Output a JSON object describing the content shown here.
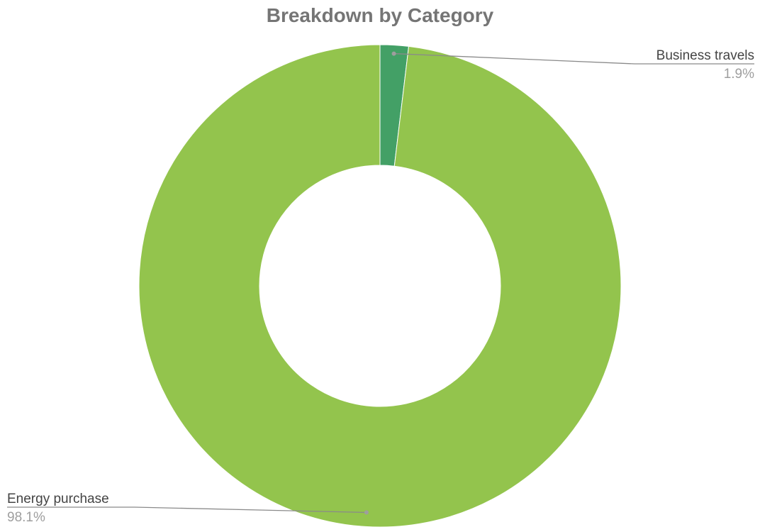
{
  "chart_data": {
    "type": "pie",
    "style": "donut",
    "title": "Breakdown by Category",
    "slices": [
      {
        "label": "Business travels",
        "value": 1.9,
        "display_value": "1.9%",
        "color": "#43a066",
        "label_side": "right"
      },
      {
        "label": "Energy purchase",
        "value": 98.1,
        "display_value": "98.1%",
        "color": "#93c44d",
        "label_side": "left"
      }
    ],
    "legend": "none",
    "start_angle": "12 o'clock",
    "direction": "clockwise"
  }
}
